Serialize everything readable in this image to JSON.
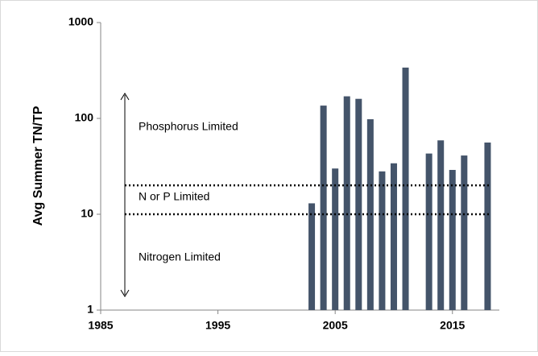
{
  "chart_data": {
    "type": "bar",
    "ylabel": "Avg Summer TN/TP",
    "x": [
      2003,
      2004,
      2005,
      2006,
      2007,
      2008,
      2009,
      2010,
      2011,
      2013,
      2014,
      2015,
      2016,
      2018
    ],
    "values": [
      13,
      136,
      30,
      170,
      160,
      98,
      28,
      34,
      339,
      43,
      59,
      29,
      41,
      56
    ],
    "color": "#44546a",
    "xlim": [
      1985,
      2019
    ],
    "xticks": [
      1985,
      1995,
      2005,
      2015
    ],
    "ylim": [
      1,
      1000
    ],
    "yticks": [
      1,
      10,
      100,
      1000
    ],
    "log_y": true,
    "reference_lines": [
      20,
      10
    ],
    "annotations": [
      "Phosphorus Limited",
      "N or P Limited",
      "Nitrogen Limited"
    ]
  }
}
